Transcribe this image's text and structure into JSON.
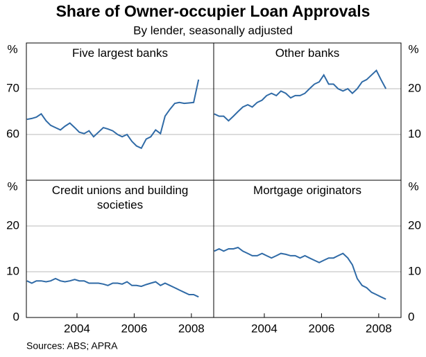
{
  "title": "Share of Owner-occupier Loan Approvals",
  "subtitle": "By lender, seasonally adjusted",
  "source": "Sources: ABS; APRA",
  "chart_data": [
    {
      "type": "line",
      "title": "Five largest banks",
      "ylabel": "%",
      "color": "#2f6aa6",
      "xlim": [
        2002.23,
        2008.78
      ],
      "ylim": [
        50,
        80
      ],
      "yticks": [
        60,
        70
      ],
      "grid": true,
      "x": [
        2002.25,
        2002.42,
        2002.58,
        2002.75,
        2002.92,
        2003.08,
        2003.25,
        2003.42,
        2003.58,
        2003.75,
        2003.92,
        2004.08,
        2004.25,
        2004.42,
        2004.58,
        2004.75,
        2004.92,
        2005.08,
        2005.25,
        2005.42,
        2005.58,
        2005.75,
        2005.92,
        2006.08,
        2006.25,
        2006.42,
        2006.58,
        2006.75,
        2006.92,
        2007.08,
        2007.25,
        2007.42,
        2007.58,
        2007.75,
        2007.92,
        2008.08,
        2008.25
      ],
      "values": [
        63.3,
        63.5,
        63.8,
        64.5,
        63,
        62,
        61.5,
        61,
        61.8,
        62.5,
        61.5,
        60.5,
        60.2,
        60.8,
        59.5,
        60.5,
        61.5,
        61.2,
        60.8,
        60,
        59.5,
        60,
        58.5,
        57.5,
        57,
        59,
        59.5,
        61,
        60.2,
        64,
        65.5,
        66.8,
        67,
        66.8,
        66.9,
        67,
        72
      ]
    },
    {
      "type": "line",
      "title": "Other banks",
      "ylabel": "%",
      "color": "#2f6aa6",
      "xlim": [
        2002.23,
        2008.78
      ],
      "ylim": [
        0,
        30
      ],
      "yticks": [
        10,
        20
      ],
      "grid": true,
      "x": [
        2002.25,
        2002.42,
        2002.58,
        2002.75,
        2002.92,
        2003.08,
        2003.25,
        2003.42,
        2003.58,
        2003.75,
        2003.92,
        2004.08,
        2004.25,
        2004.42,
        2004.58,
        2004.75,
        2004.92,
        2005.08,
        2005.25,
        2005.42,
        2005.58,
        2005.75,
        2005.92,
        2006.08,
        2006.25,
        2006.42,
        2006.58,
        2006.75,
        2006.92,
        2007.08,
        2007.25,
        2007.42,
        2007.58,
        2007.75,
        2007.92,
        2008.08,
        2008.25
      ],
      "values": [
        14.5,
        14,
        14,
        13,
        14,
        15,
        16,
        16.5,
        16,
        17,
        17.5,
        18.5,
        19,
        18.5,
        19.5,
        19,
        18,
        18.5,
        18.5,
        19,
        20,
        21,
        21.5,
        23,
        21,
        21,
        20,
        19.5,
        20,
        19,
        20,
        21.5,
        22,
        23,
        24,
        22,
        20
      ]
    },
    {
      "type": "line",
      "title": "Credit unions and building societies",
      "ylabel": "%",
      "color": "#2f6aa6",
      "xlim": [
        2002.23,
        2008.78
      ],
      "ylim": [
        0,
        30
      ],
      "yticks": [
        0,
        10,
        20
      ],
      "xticks": [
        2004,
        2006,
        2008
      ],
      "grid": true,
      "x": [
        2002.25,
        2002.42,
        2002.58,
        2002.75,
        2002.92,
        2003.08,
        2003.25,
        2003.42,
        2003.58,
        2003.75,
        2003.92,
        2004.08,
        2004.25,
        2004.42,
        2004.58,
        2004.75,
        2004.92,
        2005.08,
        2005.25,
        2005.42,
        2005.58,
        2005.75,
        2005.92,
        2006.08,
        2006.25,
        2006.42,
        2006.58,
        2006.75,
        2006.92,
        2007.08,
        2007.25,
        2007.42,
        2007.58,
        2007.75,
        2007.92,
        2008.08,
        2008.25
      ],
      "values": [
        8,
        7.5,
        8,
        8,
        7.8,
        8,
        8.5,
        8,
        7.8,
        8,
        8.3,
        8,
        8,
        7.5,
        7.5,
        7.5,
        7.3,
        7,
        7.5,
        7.5,
        7.3,
        7.8,
        7,
        7,
        6.8,
        7.2,
        7.5,
        7.8,
        7,
        7.5,
        7,
        6.5,
        6,
        5.5,
        5,
        5,
        4.5
      ]
    },
    {
      "type": "line",
      "title": "Mortgage originators",
      "ylabel": "%",
      "color": "#2f6aa6",
      "xlim": [
        2002.23,
        2008.78
      ],
      "ylim": [
        0,
        30
      ],
      "yticks": [
        0,
        10,
        20
      ],
      "xticks": [
        2004,
        2006,
        2008
      ],
      "grid": true,
      "x": [
        2002.25,
        2002.42,
        2002.58,
        2002.75,
        2002.92,
        2003.08,
        2003.25,
        2003.42,
        2003.58,
        2003.75,
        2003.92,
        2004.08,
        2004.25,
        2004.42,
        2004.58,
        2004.75,
        2004.92,
        2005.08,
        2005.25,
        2005.42,
        2005.58,
        2005.75,
        2005.92,
        2006.08,
        2006.25,
        2006.42,
        2006.58,
        2006.75,
        2006.92,
        2007.08,
        2007.25,
        2007.42,
        2007.58,
        2007.75,
        2007.92,
        2008.08,
        2008.25
      ],
      "values": [
        14.5,
        15,
        14.5,
        15,
        15,
        15.3,
        14.5,
        14,
        13.5,
        13.5,
        14,
        13.5,
        13,
        13.5,
        14,
        13.8,
        13.5,
        13.5,
        13,
        13.5,
        13,
        12.5,
        12,
        12.5,
        13,
        13,
        13.5,
        14,
        13,
        11.5,
        8.5,
        7,
        6.5,
        5.5,
        5,
        4.5,
        4
      ]
    }
  ]
}
